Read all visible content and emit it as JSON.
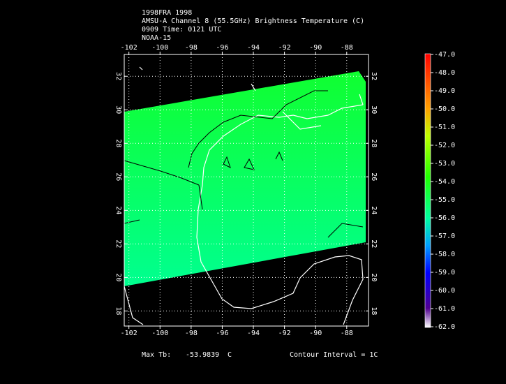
{
  "header": {
    "lines": [
      "1998FRA 1998",
      "AMSU-A Channel 8 (55.5GHz) Brightness Temperature (C)",
      "0909 Time: 0121 UTC",
      "NOAA-15"
    ]
  },
  "map": {
    "xlim": [
      -102.3,
      -86.6
    ],
    "ylim": [
      17.1,
      33.3
    ],
    "xticks": [
      -102,
      -100,
      -98,
      -96,
      -94,
      -92,
      -90,
      -88
    ],
    "yticks": [
      18,
      20,
      22,
      24,
      26,
      28,
      30,
      32
    ]
  },
  "colorbar": {
    "vlim": [
      -62,
      -47
    ],
    "ticks": [
      {
        "value": -47,
        "label": "-47.0"
      },
      {
        "value": -48,
        "label": "-48.0"
      },
      {
        "value": -49,
        "label": "-49.0"
      },
      {
        "value": -50,
        "label": "-50.0"
      },
      {
        "value": -51,
        "label": "-51.0"
      },
      {
        "value": -52,
        "label": "-52.0"
      },
      {
        "value": -53,
        "label": "-53.0"
      },
      {
        "value": -54,
        "label": "-54.0"
      },
      {
        "value": -55,
        "label": "-55.0"
      },
      {
        "value": -56,
        "label": "-56.0"
      },
      {
        "value": -57,
        "label": "-57.0"
      },
      {
        "value": -58,
        "label": "-58.0"
      },
      {
        "value": -59,
        "label": "-59.0"
      },
      {
        "value": -60,
        "label": "-60.0"
      },
      {
        "value": -61,
        "label": "-61.0"
      },
      {
        "value": -62,
        "label": "-62.0"
      }
    ]
  },
  "footer": {
    "max_label": "Max Tb:",
    "max_value": "-53.9839",
    "unit": "C",
    "contour": "Contour Interval = 1C"
  }
}
